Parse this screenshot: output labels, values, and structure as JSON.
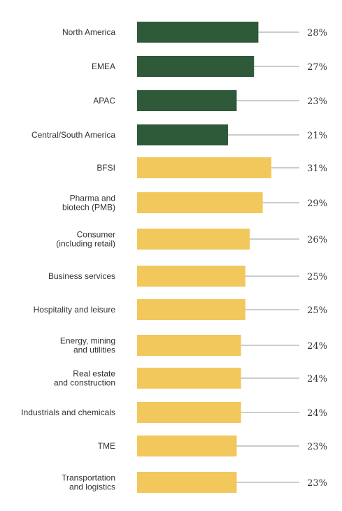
{
  "chart_data": {
    "type": "bar",
    "orientation": "horizontal",
    "title": "",
    "xlabel": "",
    "ylabel": "",
    "xlim": [
      0,
      31
    ],
    "grid": false,
    "legend": "none",
    "colors": {
      "region": "#2e5a3a",
      "sector": "#f2c75c",
      "leader": "#999999",
      "text": "#333333"
    },
    "categories": [
      [
        "North America"
      ],
      [
        "EMEA"
      ],
      [
        "APAC"
      ],
      [
        "Central/South America"
      ],
      [
        "BFSI"
      ],
      [
        "Pharma and",
        "biotech (PMB)"
      ],
      [
        "Consumer",
        "(including retail)"
      ],
      [
        "Business services"
      ],
      [
        "Hospitality and leisure"
      ],
      [
        "Energy, mining",
        "and utilities"
      ],
      [
        "Real estate",
        "and construction"
      ],
      [
        "Industrials and chemicals"
      ],
      [
        "TME"
      ],
      [
        "Transportation",
        "and logistics"
      ]
    ],
    "values": [
      28,
      27,
      23,
      21,
      31,
      29,
      26,
      25,
      25,
      24,
      24,
      24,
      23,
      23
    ],
    "value_labels": [
      "28%",
      "27%",
      "23%",
      "21%",
      "31%",
      "29%",
      "26%",
      "25%",
      "25%",
      "24%",
      "24%",
      "24%",
      "23%",
      "23%"
    ],
    "groups": [
      "region",
      "region",
      "region",
      "region",
      "sector",
      "sector",
      "sector",
      "sector",
      "sector",
      "sector",
      "sector",
      "sector",
      "sector",
      "sector"
    ]
  }
}
